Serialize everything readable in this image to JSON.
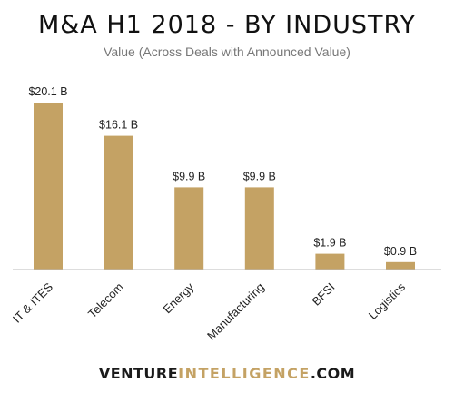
{
  "chart_data": {
    "type": "bar",
    "title": "M&A H1 2018 - BY INDUSTRY",
    "subtitle": "Value (Across Deals with Announced Value)",
    "categories": [
      "IT & ITES",
      "Telecom",
      "Energy",
      "Manufacturing",
      "BFSI",
      "Logistics"
    ],
    "values": [
      20.1,
      16.1,
      9.9,
      9.9,
      1.9,
      0.9
    ],
    "data_labels": [
      "$20.1 B",
      "$16.1 B",
      "$9.9 B",
      "$9.9 B",
      "$1.9 B",
      "$0.9 B"
    ],
    "ylim": [
      0,
      20.1
    ],
    "grid": false,
    "legend": "none"
  },
  "colors": {
    "bar": "#c4a264",
    "axis": "#bbbbbb",
    "brand_accent": "#c4a264"
  },
  "footer": {
    "brand_part1": "VENTURE",
    "brand_part2": "INTELLIGENCE",
    "brand_part3": ".COM"
  }
}
